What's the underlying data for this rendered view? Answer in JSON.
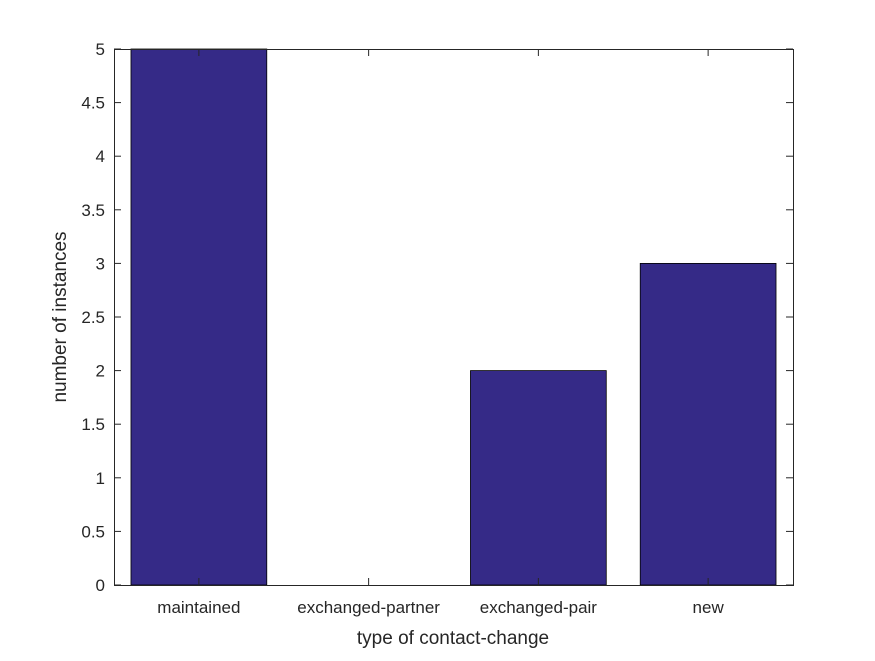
{
  "chart_data": {
    "type": "bar",
    "title": "",
    "xlabel": "type of contact-change",
    "ylabel": "number of instances",
    "categories": [
      "maintained",
      "exchanged-partner",
      "exchanged-pair",
      "new"
    ],
    "values": [
      5,
      0,
      2,
      3
    ],
    "ylim": [
      0,
      5
    ],
    "yticks": [
      "0",
      "0.5",
      "1",
      "1.5",
      "2",
      "2.5",
      "3",
      "3.5",
      "4",
      "4.5",
      "5"
    ],
    "grid": false,
    "bar_color": "#352a87"
  }
}
